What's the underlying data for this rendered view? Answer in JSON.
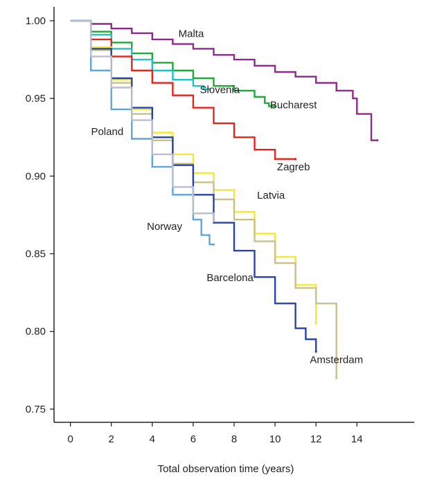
{
  "chart_data": {
    "type": "line",
    "title": "",
    "xlabel": "Total observation time (years)",
    "ylabel": "",
    "xlim": [
      -0.8,
      16.8
    ],
    "ylim": [
      0.7415,
      1.0089
    ],
    "x_ticks": [
      "0",
      "2",
      "4",
      "6",
      "8",
      "10",
      "12",
      "14"
    ],
    "y_ticks": [
      "1.00",
      "0.95",
      "0.90",
      "0.85",
      "0.80",
      "0.75"
    ],
    "step": true,
    "series": [
      {
        "name": "Malta",
        "color": "#8B2A8B",
        "x": [
          0,
          1,
          2,
          3,
          4,
          5,
          6,
          7,
          8,
          9,
          10,
          11,
          12,
          13,
          13.8,
          14,
          14.7,
          15
        ],
        "y": [
          1.0,
          0.998,
          0.995,
          0.992,
          0.988,
          0.985,
          0.982,
          0.978,
          0.975,
          0.971,
          0.967,
          0.964,
          0.96,
          0.955,
          0.95,
          0.94,
          0.923,
          0.923
        ],
        "label_at": [
          5.9,
          0.9895
        ]
      },
      {
        "name": "Bucharest",
        "color": "#1FA83A",
        "x": [
          0,
          1,
          2,
          3,
          4,
          5,
          6,
          7,
          8,
          9,
          9.5,
          9.7,
          10
        ],
        "y": [
          1.0,
          0.993,
          0.986,
          0.979,
          0.973,
          0.968,
          0.963,
          0.958,
          0.955,
          0.951,
          0.947,
          0.945,
          0.945
        ],
        "label_at": [
          10.9,
          0.9437
        ]
      },
      {
        "name": "Slovenia",
        "color": "#22C1C8",
        "x": [
          0,
          1,
          2,
          3,
          4,
          5,
          6,
          6.5,
          6.8
        ],
        "y": [
          1.0,
          0.991,
          0.982,
          0.975,
          0.968,
          0.962,
          0.958,
          0.956,
          0.956
        ],
        "label_at": [
          7.3,
          0.9535
        ]
      },
      {
        "name": "Zagreb",
        "color": "#E0251F",
        "x": [
          0,
          1,
          2,
          3,
          4,
          5,
          6,
          7,
          8,
          9,
          10,
          11
        ],
        "y": [
          1.0,
          0.988,
          0.977,
          0.968,
          0.96,
          0.952,
          0.944,
          0.934,
          0.925,
          0.917,
          0.911,
          0.911
        ],
        "label_at": [
          10.9,
          0.9038
        ]
      },
      {
        "name": "Latvia",
        "color": "#F2E83A",
        "x": [
          0,
          1,
          2,
          3,
          4,
          5,
          6,
          7,
          8,
          9,
          10,
          11,
          12
        ],
        "y": [
          1.0,
          0.983,
          0.962,
          0.943,
          0.928,
          0.914,
          0.902,
          0.891,
          0.877,
          0.863,
          0.848,
          0.83,
          0.805
        ],
        "label_at": [
          9.8,
          0.8855
        ]
      },
      {
        "name": "Amsterdam",
        "color": "#C9C08A",
        "x": [
          0,
          1,
          2,
          3,
          4,
          5,
          6,
          7,
          8,
          9,
          10,
          11,
          12,
          13,
          13
        ],
        "y": [
          1.0,
          0.981,
          0.96,
          0.94,
          0.923,
          0.908,
          0.896,
          0.885,
          0.872,
          0.858,
          0.844,
          0.828,
          0.818,
          0.813,
          0.77
        ],
        "label_at": [
          13.0,
          0.7795
        ]
      },
      {
        "name": "Barcelona",
        "color": "#2742A8",
        "x": [
          0,
          1,
          2,
          3,
          4,
          5,
          6,
          7,
          8,
          9,
          10,
          11,
          11.5,
          12
        ],
        "y": [
          1.0,
          0.982,
          0.963,
          0.944,
          0.925,
          0.907,
          0.888,
          0.87,
          0.852,
          0.835,
          0.818,
          0.802,
          0.795,
          0.787
        ],
        "label_at": [
          7.8,
          0.8325
        ]
      },
      {
        "name": "Norway",
        "color": "#5FA5D8",
        "x": [
          0,
          1,
          2,
          3,
          4,
          5,
          6,
          6.4,
          6.8,
          7
        ],
        "y": [
          1.0,
          0.968,
          0.943,
          0.924,
          0.906,
          0.888,
          0.872,
          0.862,
          0.856,
          0.856
        ],
        "label_at": [
          4.6,
          0.8655
        ]
      },
      {
        "name": "Poland",
        "color": "#BCBCCF",
        "x": [
          0,
          1,
          2,
          3,
          4,
          5,
          6,
          7
        ],
        "y": [
          1.0,
          0.977,
          0.957,
          0.936,
          0.914,
          0.893,
          0.876,
          0.871
        ],
        "label_at": [
          1.8,
          0.9265
        ]
      }
    ]
  }
}
